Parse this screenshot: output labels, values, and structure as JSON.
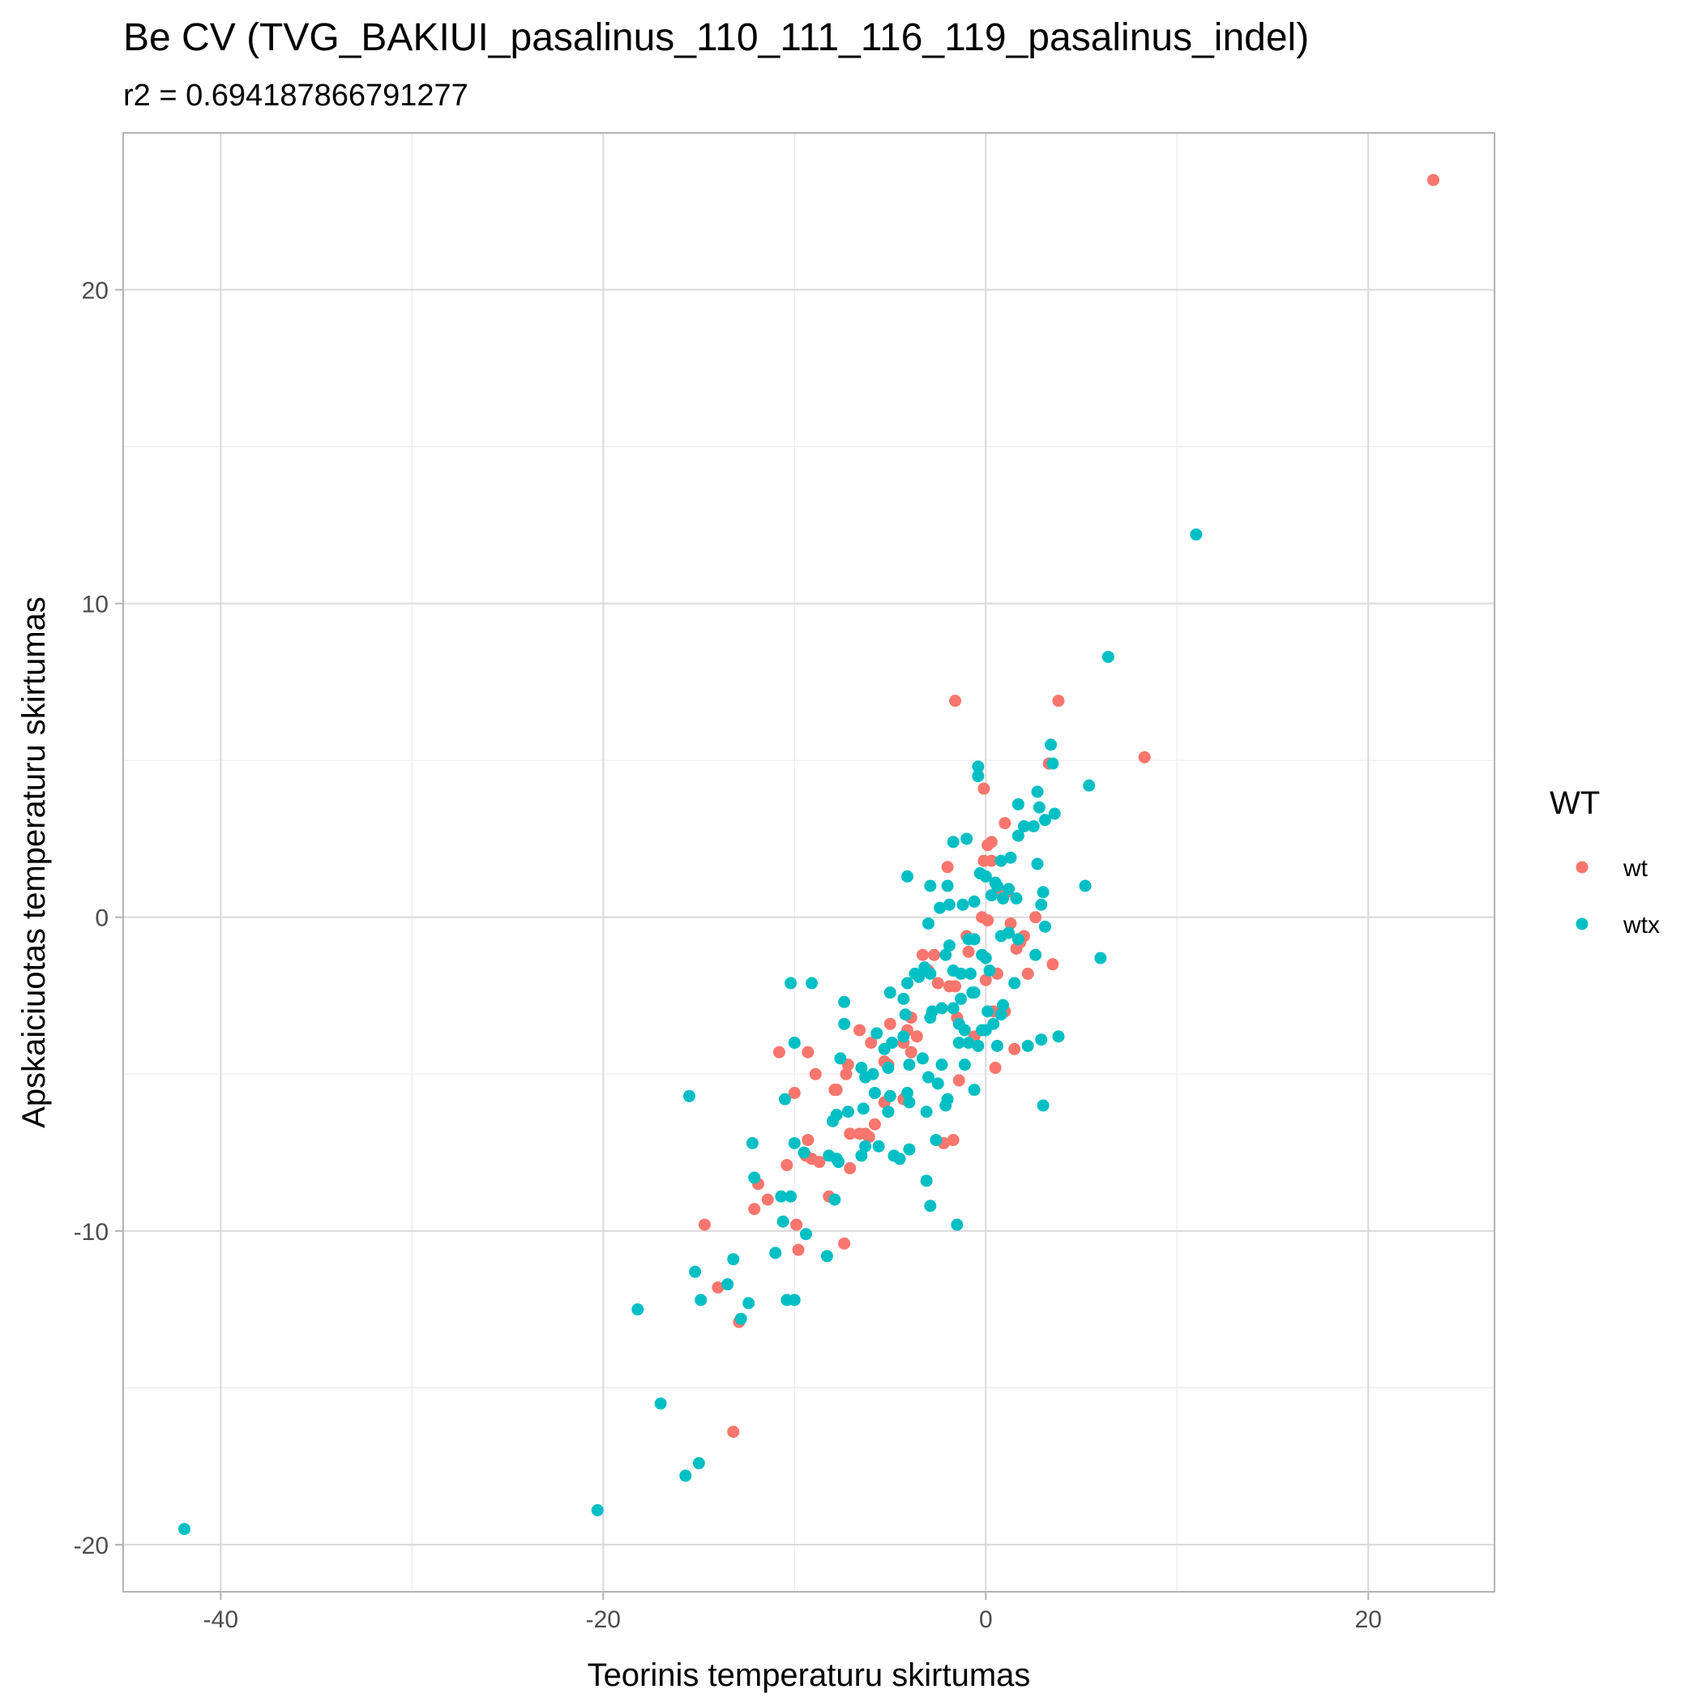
{
  "chart_data": {
    "type": "scatter",
    "title": "Be CV (TVG_BAKIUI_pasalinus_110_111_116_119_pasalinus_indel)",
    "subtitle": "r2 = 0.694187866791277",
    "xlabel": "Teorinis temperaturu skirtumas",
    "ylabel": "Apskaiciuotas temperaturu skirtumas",
    "xlim": [
      -45.1,
      26.6
    ],
    "ylim": [
      -21.5,
      25.0
    ],
    "x_ticks": [
      -40,
      -20,
      0,
      20
    ],
    "y_ticks": [
      -20,
      -10,
      0,
      10,
      20
    ],
    "x_tick_labels": [
      "-40",
      "-20",
      "0",
      "20"
    ],
    "y_tick_labels": [
      "-20",
      "-10",
      "0",
      "10",
      "20"
    ],
    "grid": true,
    "legend": {
      "title": "WT",
      "position": "right"
    },
    "series": [
      {
        "name": "wt",
        "color": "#F8766D",
        "points": [
          [
            23.4,
            23.5
          ],
          [
            8.3,
            5.1
          ],
          [
            3.8,
            6.9
          ],
          [
            -1.6,
            6.9
          ],
          [
            3.3,
            4.9
          ],
          [
            -0.1,
            4.1
          ],
          [
            1.0,
            3.0
          ],
          [
            0.3,
            2.4
          ],
          [
            0.1,
            2.3
          ],
          [
            -2.0,
            1.6
          ],
          [
            0.3,
            1.8
          ],
          [
            -0.1,
            1.8
          ],
          [
            0.6,
            0.8
          ],
          [
            1.1,
            0.8
          ],
          [
            1.3,
            -0.2
          ],
          [
            0.1,
            -0.1
          ],
          [
            -0.2,
            0.0
          ],
          [
            -1.0,
            -0.6
          ],
          [
            2.0,
            -0.6
          ],
          [
            2.6,
            0.0
          ],
          [
            1.8,
            -0.8
          ],
          [
            1.6,
            -1.0
          ],
          [
            -0.9,
            -1.1
          ],
          [
            3.5,
            -1.5
          ],
          [
            -2.7,
            -1.2
          ],
          [
            -3.3,
            -1.2
          ],
          [
            0.6,
            -1.8
          ],
          [
            2.2,
            -1.8
          ],
          [
            -3.0,
            -1.7
          ],
          [
            -1.6,
            -2.2
          ],
          [
            0.0,
            -2.0
          ],
          [
            -2.5,
            -2.1
          ],
          [
            -1.9,
            -2.2
          ],
          [
            0.4,
            -3.0
          ],
          [
            1.0,
            -3.0
          ],
          [
            -1.5,
            -3.2
          ],
          [
            -3.9,
            -3.2
          ],
          [
            -4.1,
            -3.6
          ],
          [
            -3.6,
            -3.8
          ],
          [
            -5.0,
            -3.4
          ],
          [
            -4.3,
            -4.0
          ],
          [
            -0.6,
            -3.8
          ],
          [
            -3.9,
            -4.3
          ],
          [
            -6.6,
            -3.6
          ],
          [
            -6.0,
            -4.0
          ],
          [
            1.5,
            -4.2
          ],
          [
            -10.8,
            -4.3
          ],
          [
            -9.3,
            -4.3
          ],
          [
            -5.3,
            -4.6
          ],
          [
            -7.2,
            -4.7
          ],
          [
            0.5,
            -4.8
          ],
          [
            -5.1,
            -4.7
          ],
          [
            -8.9,
            -5.0
          ],
          [
            -7.3,
            -5.0
          ],
          [
            -1.4,
            -5.2
          ],
          [
            -7.9,
            -5.5
          ],
          [
            -7.8,
            -5.5
          ],
          [
            -10.0,
            -5.6
          ],
          [
            -4.3,
            -5.8
          ],
          [
            -5.3,
            -5.9
          ],
          [
            -5.1,
            -6.2
          ],
          [
            -5.8,
            -6.6
          ],
          [
            -6.3,
            -6.9
          ],
          [
            -6.6,
            -6.9
          ],
          [
            -7.1,
            -6.9
          ],
          [
            -6.1,
            -7.0
          ],
          [
            -9.3,
            -7.1
          ],
          [
            -1.7,
            -7.1
          ],
          [
            -2.2,
            -7.2
          ],
          [
            -9.4,
            -7.6
          ],
          [
            -9.1,
            -7.7
          ],
          [
            -8.7,
            -7.8
          ],
          [
            -10.4,
            -7.9
          ],
          [
            -7.1,
            -8.0
          ],
          [
            -11.9,
            -8.5
          ],
          [
            -8.2,
            -8.9
          ],
          [
            -11.4,
            -9.0
          ],
          [
            -12.1,
            -9.3
          ],
          [
            -14.7,
            -9.8
          ],
          [
            -9.9,
            -9.8
          ],
          [
            -7.4,
            -10.4
          ],
          [
            -9.8,
            -10.6
          ],
          [
            -14.0,
            -11.8
          ],
          [
            -12.9,
            -12.9
          ],
          [
            -13.2,
            -16.4
          ]
        ]
      },
      {
        "name": "wtx",
        "color": "#00BFC4",
        "points": [
          [
            -41.9,
            -19.5
          ],
          [
            -20.3,
            -18.9
          ],
          [
            -15.7,
            -17.8
          ],
          [
            -15.0,
            -17.4
          ],
          [
            -17.0,
            -15.5
          ],
          [
            -18.2,
            -12.5
          ],
          [
            -12.8,
            -12.8
          ],
          [
            -12.4,
            -12.3
          ],
          [
            -10.4,
            -12.2
          ],
          [
            -10.0,
            -12.2
          ],
          [
            -14.9,
            -12.2
          ],
          [
            -13.5,
            -11.7
          ],
          [
            -15.2,
            -11.3
          ],
          [
            -13.2,
            -10.9
          ],
          [
            -11.0,
            -10.7
          ],
          [
            -8.3,
            -10.8
          ],
          [
            -9.4,
            -10.1
          ],
          [
            -10.6,
            -9.7
          ],
          [
            -7.9,
            -9.0
          ],
          [
            -10.2,
            -8.9
          ],
          [
            -10.7,
            -8.9
          ],
          [
            -12.1,
            -8.3
          ],
          [
            -2.9,
            -9.2
          ],
          [
            -1.5,
            -9.8
          ],
          [
            -3.1,
            -8.4
          ],
          [
            -12.2,
            -7.2
          ],
          [
            -10.0,
            -7.2
          ],
          [
            -8.2,
            -7.6
          ],
          [
            -7.8,
            -7.7
          ],
          [
            -9.5,
            -7.5
          ],
          [
            -7.7,
            -7.8
          ],
          [
            -6.3,
            -7.3
          ],
          [
            -5.6,
            -7.3
          ],
          [
            -6.5,
            -7.6
          ],
          [
            -4.8,
            -7.6
          ],
          [
            -4.5,
            -7.7
          ],
          [
            -4.0,
            -7.4
          ],
          [
            -2.6,
            -7.1
          ],
          [
            -7.2,
            -6.2
          ],
          [
            -8.0,
            -6.5
          ],
          [
            -7.8,
            -6.3
          ],
          [
            -6.4,
            -6.1
          ],
          [
            -5.1,
            -6.2
          ],
          [
            -3.1,
            -6.2
          ],
          [
            -2.1,
            -6.0
          ],
          [
            -10.5,
            -5.8
          ],
          [
            -4.0,
            -5.9
          ],
          [
            -5.0,
            -5.7
          ],
          [
            -2.0,
            -5.8
          ],
          [
            -0.6,
            -5.5
          ],
          [
            -5.8,
            -5.6
          ],
          [
            -4.1,
            -5.6
          ],
          [
            -6.3,
            -5.1
          ],
          [
            -5.9,
            -5.0
          ],
          [
            -3.0,
            -5.1
          ],
          [
            -2.5,
            -5.3
          ],
          [
            -7.6,
            -4.5
          ],
          [
            -6.5,
            -4.8
          ],
          [
            -5.1,
            -4.8
          ],
          [
            -4.0,
            -4.7
          ],
          [
            -3.3,
            -4.5
          ],
          [
            -2.3,
            -4.7
          ],
          [
            -1.1,
            -4.7
          ],
          [
            -10.0,
            -4.0
          ],
          [
            -15.5,
            -5.7
          ],
          [
            -5.3,
            -4.2
          ],
          [
            -4.9,
            -4.0
          ],
          [
            -4.3,
            -3.8
          ],
          [
            -1.4,
            -4.0
          ],
          [
            -0.9,
            -4.0
          ],
          [
            -0.4,
            -4.1
          ],
          [
            0.6,
            -4.1
          ],
          [
            2.2,
            -4.1
          ],
          [
            2.9,
            -3.9
          ],
          [
            3.8,
            -3.8
          ],
          [
            -0.2,
            -3.6
          ],
          [
            0.0,
            -3.6
          ],
          [
            -1.1,
            -3.6
          ],
          [
            -7.4,
            -3.4
          ],
          [
            -5.7,
            -3.7
          ],
          [
            -4.2,
            -3.1
          ],
          [
            -2.9,
            -3.2
          ],
          [
            -2.8,
            -3.0
          ],
          [
            0.8,
            -3.1
          ],
          [
            0.4,
            -3.4
          ],
          [
            0.1,
            -3.0
          ],
          [
            -1.7,
            -2.9
          ],
          [
            -1.3,
            -2.6
          ],
          [
            -4.3,
            -2.6
          ],
          [
            -5.0,
            -2.4
          ],
          [
            -0.6,
            -2.4
          ],
          [
            -7.4,
            -2.7
          ],
          [
            -10.2,
            -2.1
          ],
          [
            -9.1,
            -2.1
          ],
          [
            -4.1,
            -2.1
          ],
          [
            -3.7,
            -1.8
          ],
          [
            -3.5,
            -1.9
          ],
          [
            -2.9,
            -1.8
          ],
          [
            -1.7,
            -1.7
          ],
          [
            -1.3,
            -1.8
          ],
          [
            -0.8,
            -1.8
          ],
          [
            0.2,
            -1.7
          ],
          [
            1.5,
            -2.1
          ],
          [
            -2.1,
            -1.2
          ],
          [
            -3.0,
            -0.2
          ],
          [
            -2.4,
            0.3
          ],
          [
            -1.9,
            0.4
          ],
          [
            -1.2,
            0.4
          ],
          [
            -0.9,
            -0.7
          ],
          [
            -0.2,
            -1.2
          ],
          [
            0.0,
            -1.3
          ],
          [
            0.8,
            -0.6
          ],
          [
            1.2,
            -0.5
          ],
          [
            2.6,
            -1.2
          ],
          [
            3.1,
            -0.3
          ],
          [
            -1.9,
            -0.9
          ],
          [
            -0.6,
            -0.7
          ],
          [
            0.3,
            0.7
          ],
          [
            0.9,
            0.6
          ],
          [
            1.2,
            0.9
          ],
          [
            1.6,
            0.6
          ],
          [
            0.5,
            1.1
          ],
          [
            0.0,
            1.3
          ],
          [
            -0.3,
            1.4
          ],
          [
            -2.0,
            1.0
          ],
          [
            -2.9,
            1.0
          ],
          [
            -4.1,
            1.3
          ],
          [
            -0.6,
            0.5
          ],
          [
            0.8,
            1.8
          ],
          [
            1.3,
            1.9
          ],
          [
            2.7,
            1.7
          ],
          [
            3.0,
            0.8
          ],
          [
            2.9,
            0.4
          ],
          [
            2.0,
            2.9
          ],
          [
            2.5,
            2.9
          ],
          [
            1.7,
            2.6
          ],
          [
            2.8,
            3.5
          ],
          [
            3.1,
            3.1
          ],
          [
            3.6,
            3.3
          ],
          [
            2.7,
            4.0
          ],
          [
            1.7,
            3.6
          ],
          [
            0.6,
            1.0
          ],
          [
            -1.0,
            2.5
          ],
          [
            -1.7,
            2.4
          ],
          [
            -0.4,
            4.5
          ],
          [
            -0.4,
            4.8
          ],
          [
            3.4,
            5.5
          ],
          [
            3.5,
            4.9
          ],
          [
            5.4,
            4.2
          ],
          [
            6.4,
            8.3
          ],
          [
            5.2,
            1.0
          ],
          [
            6.0,
            -1.3
          ],
          [
            3.0,
            -6.0
          ],
          [
            11.0,
            12.2
          ],
          [
            -0.7,
            -2.4
          ],
          [
            -3.2,
            -1.6
          ],
          [
            1.7,
            -0.7
          ],
          [
            -2.3,
            -2.9
          ],
          [
            -1.4,
            -3.4
          ],
          [
            0.9,
            -2.8
          ]
        ]
      }
    ]
  }
}
